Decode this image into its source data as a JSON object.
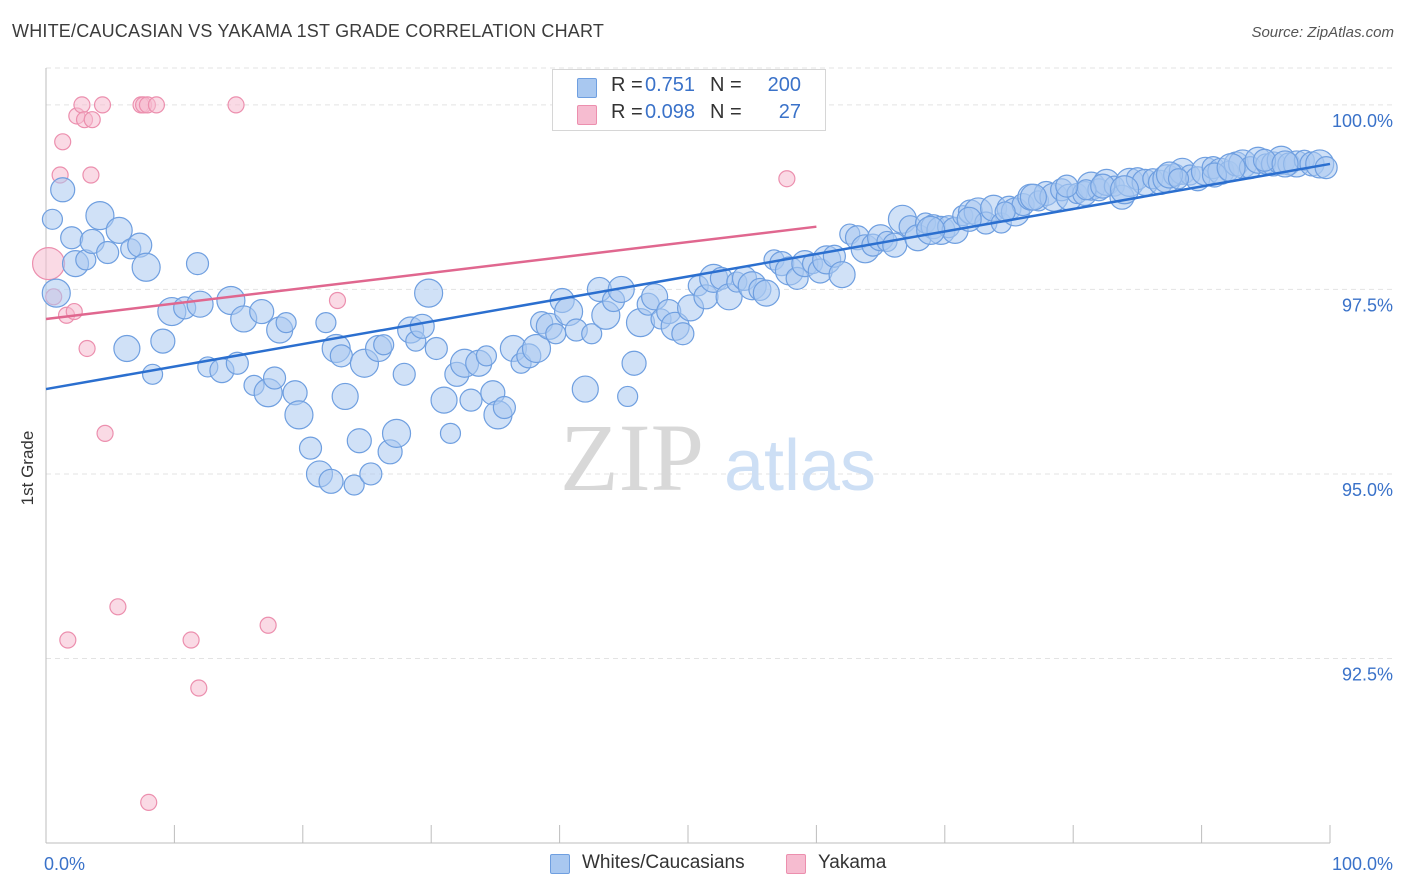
{
  "title": "WHITE/CAUCASIAN VS YAKAMA 1ST GRADE CORRELATION CHART",
  "source": "Source: ZipAtlas.com",
  "watermark": {
    "zip": "ZIP",
    "atlas": "atlas"
  },
  "legend": {
    "rows": [
      {
        "r_label": "R =",
        "r_value": "0.751",
        "n_label": "N =",
        "n_value": "200"
      },
      {
        "r_label": "R =",
        "r_value": "0.098",
        "n_label": "N =",
        "n_value": "27"
      }
    ]
  },
  "bottom_legend": {
    "series1": "Whites/Caucasians",
    "series2": "Yakama"
  },
  "colors": {
    "blue_fill": "#a9c8f0",
    "blue_stroke": "#6f9fe0",
    "blue_line": "#2b6fcf",
    "pink_fill": "#f6bcd0",
    "pink_stroke": "#ec8fae",
    "pink_line": "#e0678f",
    "tick_text": "#3a72c9",
    "grid": "#e3e3e3"
  },
  "chart_data": {
    "type": "scatter",
    "title": "WHITE/CAUCASIAN VS YAKAMA 1ST GRADE CORRELATION CHART",
    "xlabel": "",
    "ylabel": "1st Grade",
    "xlim": [
      0,
      100
    ],
    "ylim": [
      90.0,
      100.5
    ],
    "x_ticks": [
      0,
      10,
      20,
      30,
      40,
      50,
      60,
      70,
      80,
      90,
      100
    ],
    "x_tick_labels": {
      "0": "0.0%",
      "100": "100.0%"
    },
    "y_ticks": [
      92.5,
      95.0,
      97.5,
      100.0
    ],
    "y_tick_labels": [
      "92.5%",
      "95.0%",
      "97.5%",
      "100.0%"
    ],
    "grid": true,
    "series": [
      {
        "name": "Whites/Caucasians",
        "r": 0.751,
        "n": 200,
        "trend": {
          "x": [
            0,
            100
          ],
          "y": [
            96.15,
            99.2
          ]
        },
        "points": [
          [
            0.5,
            98.45
          ],
          [
            1.3,
            98.85
          ],
          [
            0.8,
            97.45
          ],
          [
            2.0,
            98.2
          ],
          [
            2.3,
            97.85
          ],
          [
            3.1,
            97.9
          ],
          [
            3.6,
            98.15
          ],
          [
            4.2,
            98.5
          ],
          [
            4.8,
            98.0
          ],
          [
            5.7,
            98.3
          ],
          [
            6.6,
            98.05
          ],
          [
            7.3,
            98.1
          ],
          [
            7.8,
            97.8
          ],
          [
            11.8,
            97.85
          ],
          [
            6.3,
            96.7
          ],
          [
            8.3,
            96.35
          ],
          [
            9.1,
            96.8
          ],
          [
            9.8,
            97.2
          ],
          [
            10.8,
            97.25
          ],
          [
            12.0,
            97.3
          ],
          [
            12.6,
            96.45
          ],
          [
            13.7,
            96.4
          ],
          [
            14.4,
            97.35
          ],
          [
            14.9,
            96.5
          ],
          [
            15.4,
            97.1
          ],
          [
            16.2,
            96.2
          ],
          [
            16.8,
            97.2
          ],
          [
            17.3,
            96.1
          ],
          [
            17.8,
            96.3
          ],
          [
            18.2,
            96.95
          ],
          [
            18.7,
            97.05
          ],
          [
            19.4,
            96.1
          ],
          [
            19.7,
            95.8
          ],
          [
            20.6,
            95.35
          ],
          [
            21.3,
            95.0
          ],
          [
            21.8,
            97.05
          ],
          [
            22.2,
            94.9
          ],
          [
            22.6,
            96.7
          ],
          [
            23.0,
            96.6
          ],
          [
            23.3,
            96.05
          ],
          [
            24.0,
            94.85
          ],
          [
            24.4,
            95.45
          ],
          [
            24.8,
            96.5
          ],
          [
            25.3,
            95.0
          ],
          [
            25.9,
            96.7
          ],
          [
            26.3,
            96.75
          ],
          [
            26.8,
            95.3
          ],
          [
            27.3,
            95.55
          ],
          [
            27.9,
            96.35
          ],
          [
            28.4,
            96.95
          ],
          [
            28.8,
            96.8
          ],
          [
            29.3,
            97.0
          ],
          [
            29.8,
            97.45
          ],
          [
            30.4,
            96.7
          ],
          [
            31.0,
            96.0
          ],
          [
            31.5,
            95.55
          ],
          [
            32.0,
            96.35
          ],
          [
            32.6,
            96.5
          ],
          [
            33.1,
            96.0
          ],
          [
            33.7,
            96.5
          ],
          [
            34.3,
            96.6
          ],
          [
            34.8,
            96.1
          ],
          [
            35.2,
            95.8
          ],
          [
            35.7,
            95.9
          ],
          [
            36.4,
            96.7
          ],
          [
            37.0,
            96.5
          ],
          [
            37.6,
            96.6
          ],
          [
            38.2,
            96.7
          ],
          [
            38.6,
            97.05
          ],
          [
            39.2,
            97.0
          ],
          [
            39.7,
            96.9
          ],
          [
            40.2,
            97.35
          ],
          [
            40.7,
            97.2
          ],
          [
            41.3,
            96.95
          ],
          [
            42.0,
            96.15
          ],
          [
            42.5,
            96.9
          ],
          [
            43.1,
            97.5
          ],
          [
            43.6,
            97.15
          ],
          [
            44.2,
            97.35
          ],
          [
            44.8,
            97.5
          ],
          [
            45.3,
            96.05
          ],
          [
            45.8,
            96.5
          ],
          [
            46.3,
            97.05
          ],
          [
            46.9,
            97.3
          ],
          [
            47.4,
            97.4
          ],
          [
            47.9,
            97.1
          ],
          [
            48.5,
            97.2
          ],
          [
            49.0,
            97.0
          ],
          [
            49.6,
            96.9
          ],
          [
            50.2,
            97.25
          ],
          [
            50.8,
            97.55
          ],
          [
            51.4,
            97.4
          ],
          [
            52.0,
            97.65
          ],
          [
            52.6,
            97.65
          ],
          [
            53.2,
            97.4
          ],
          [
            53.8,
            97.6
          ],
          [
            54.4,
            97.65
          ],
          [
            55.0,
            97.55
          ],
          [
            55.6,
            97.5
          ],
          [
            56.1,
            97.45
          ],
          [
            56.7,
            97.9
          ],
          [
            57.3,
            97.85
          ],
          [
            57.9,
            97.75
          ],
          [
            58.5,
            97.65
          ],
          [
            59.1,
            97.85
          ],
          [
            59.7,
            97.85
          ],
          [
            60.3,
            97.75
          ],
          [
            60.8,
            97.9
          ],
          [
            61.4,
            97.95
          ],
          [
            62.0,
            97.7
          ],
          [
            62.6,
            98.25
          ],
          [
            63.2,
            98.2
          ],
          [
            63.8,
            98.05
          ],
          [
            64.4,
            98.1
          ],
          [
            65.0,
            98.2
          ],
          [
            65.5,
            98.15
          ],
          [
            66.1,
            98.1
          ],
          [
            66.7,
            98.45
          ],
          [
            67.3,
            98.35
          ],
          [
            67.9,
            98.2
          ],
          [
            68.5,
            98.4
          ],
          [
            69.1,
            98.35
          ],
          [
            69.7,
            98.3
          ],
          [
            70.3,
            98.35
          ],
          [
            70.8,
            98.3
          ],
          [
            71.4,
            98.5
          ],
          [
            72.0,
            98.55
          ],
          [
            72.6,
            98.55
          ],
          [
            73.2,
            98.4
          ],
          [
            73.8,
            98.6
          ],
          [
            74.4,
            98.4
          ],
          [
            75.0,
            98.6
          ],
          [
            75.5,
            98.55
          ],
          [
            76.1,
            98.65
          ],
          [
            76.7,
            98.75
          ],
          [
            77.3,
            98.7
          ],
          [
            77.9,
            98.8
          ],
          [
            78.5,
            98.75
          ],
          [
            79.1,
            98.85
          ],
          [
            79.7,
            98.75
          ],
          [
            80.3,
            98.8
          ],
          [
            80.9,
            98.8
          ],
          [
            81.4,
            98.9
          ],
          [
            82.0,
            98.85
          ],
          [
            82.6,
            98.95
          ],
          [
            83.2,
            98.9
          ],
          [
            83.8,
            98.75
          ],
          [
            84.4,
            98.95
          ],
          [
            85.0,
            99.0
          ],
          [
            85.6,
            98.95
          ],
          [
            86.2,
            99.0
          ],
          [
            86.8,
            98.95
          ],
          [
            87.3,
            99.0
          ],
          [
            87.9,
            99.05
          ],
          [
            88.5,
            99.1
          ],
          [
            89.1,
            99.05
          ],
          [
            89.7,
            99.0
          ],
          [
            90.3,
            99.1
          ],
          [
            90.9,
            99.15
          ],
          [
            91.5,
            99.1
          ],
          [
            92.1,
            99.1
          ],
          [
            92.7,
            99.2
          ],
          [
            93.2,
            99.2
          ],
          [
            93.8,
            99.15
          ],
          [
            94.4,
            99.25
          ],
          [
            95.0,
            99.2
          ],
          [
            95.6,
            99.2
          ],
          [
            96.2,
            99.25
          ],
          [
            96.8,
            99.2
          ],
          [
            97.4,
            99.2
          ],
          [
            98.0,
            99.25
          ],
          [
            98.6,
            99.2
          ],
          [
            99.2,
            99.2
          ],
          [
            99.7,
            99.15
          ],
          [
            87.5,
            99.05
          ],
          [
            88.2,
            99.0
          ],
          [
            91.0,
            99.05
          ],
          [
            92.3,
            99.15
          ],
          [
            94.9,
            99.25
          ],
          [
            96.5,
            99.2
          ],
          [
            81.0,
            98.85
          ],
          [
            82.3,
            98.9
          ],
          [
            84.0,
            98.85
          ],
          [
            79.5,
            98.9
          ],
          [
            76.9,
            98.75
          ],
          [
            74.7,
            98.55
          ],
          [
            71.9,
            98.45
          ],
          [
            68.9,
            98.3
          ]
        ]
      },
      {
        "name": "Yakama",
        "r": 0.098,
        "n": 27,
        "trend": {
          "x": [
            0,
            60
          ],
          "y": [
            97.1,
            98.35
          ]
        },
        "points": [
          [
            0.2,
            97.85
          ],
          [
            0.6,
            97.4
          ],
          [
            1.3,
            99.5
          ],
          [
            1.1,
            99.05
          ],
          [
            1.6,
            97.15
          ],
          [
            2.2,
            97.2
          ],
          [
            2.4,
            99.85
          ],
          [
            2.8,
            100.0
          ],
          [
            3.0,
            99.8
          ],
          [
            3.2,
            96.7
          ],
          [
            3.5,
            99.05
          ],
          [
            3.6,
            99.8
          ],
          [
            4.4,
            100.0
          ],
          [
            4.6,
            95.55
          ],
          [
            5.6,
            93.2
          ],
          [
            7.4,
            100.0
          ],
          [
            7.6,
            100.0
          ],
          [
            7.9,
            100.0
          ],
          [
            8.6,
            100.0
          ],
          [
            1.7,
            92.75
          ],
          [
            11.3,
            92.75
          ],
          [
            11.9,
            92.1
          ],
          [
            14.8,
            100.0
          ],
          [
            17.3,
            92.95
          ],
          [
            22.7,
            97.35
          ],
          [
            57.7,
            99.0
          ],
          [
            8.0,
            90.55
          ]
        ]
      }
    ]
  }
}
